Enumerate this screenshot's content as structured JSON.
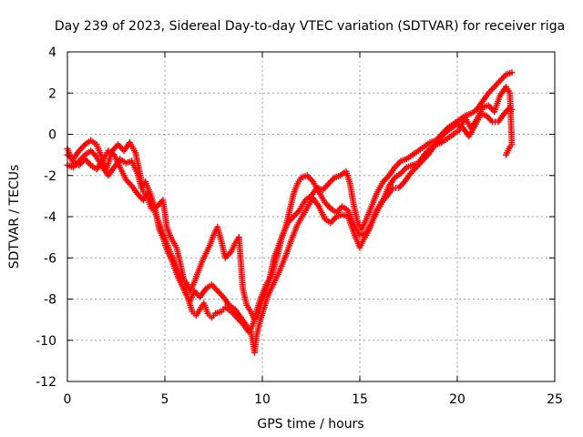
{
  "chart_data": {
    "type": "scatter",
    "title": "Day 239 of 2023, Sidereal Day-to-day VTEC variation (SDTVAR) for receiver riga",
    "xlabel": "GPS time / hours",
    "ylabel": "SDTVAR / TECUs",
    "xlim": [
      0,
      25
    ],
    "ylim": [
      -12,
      4
    ],
    "xticks": [
      0,
      5,
      10,
      15,
      20,
      25
    ],
    "yticks": [
      -12,
      -10,
      -8,
      -6,
      -4,
      -2,
      0,
      2,
      4
    ],
    "grid": true,
    "legend": "none",
    "marker": "plus",
    "color": "#ff0000",
    "series": [
      {
        "values": [
          [
            0.0,
            -1.0
          ],
          [
            0.3,
            -1.2
          ],
          [
            0.6,
            -0.8
          ],
          [
            0.9,
            -0.5
          ],
          [
            1.2,
            -0.3
          ],
          [
            1.5,
            -0.5
          ],
          [
            1.8,
            -1.2
          ],
          [
            2.0,
            -1.7
          ],
          [
            2.3,
            -0.8
          ],
          [
            2.6,
            -0.5
          ],
          [
            2.9,
            -0.8
          ],
          [
            3.2,
            -0.4
          ],
          [
            3.5,
            -0.9
          ],
          [
            3.7,
            -1.8
          ],
          [
            3.9,
            -2.8
          ],
          [
            4.1,
            -3.0
          ],
          [
            4.3,
            -3.6
          ],
          [
            4.6,
            -3.5
          ],
          [
            4.9,
            -3.2
          ],
          [
            5.1,
            -4.5
          ],
          [
            5.3,
            -5.0
          ],
          [
            5.6,
            -5.5
          ],
          [
            5.8,
            -6.3
          ],
          [
            6.0,
            -7.2
          ],
          [
            6.2,
            -8.0
          ],
          [
            6.4,
            -8.6
          ],
          [
            6.6,
            -8.8
          ],
          [
            6.8,
            -8.5
          ],
          [
            7.0,
            -8.2
          ],
          [
            7.2,
            -8.7
          ],
          [
            7.4,
            -8.9
          ],
          [
            7.6,
            -8.7
          ],
          [
            7.9,
            -8.6
          ],
          [
            8.1,
            -8.4
          ],
          [
            8.4,
            -8.6
          ],
          [
            8.7,
            -8.9
          ],
          [
            9.0,
            -9.2
          ],
          [
            9.3,
            -9.6
          ],
          [
            9.5,
            -9.3
          ],
          [
            9.7,
            -8.6
          ],
          [
            9.9,
            -8.0
          ],
          [
            10.2,
            -7.3
          ],
          [
            10.5,
            -6.8
          ],
          [
            10.8,
            -5.8
          ],
          [
            11.0,
            -5.0
          ],
          [
            11.3,
            -4.3
          ],
          [
            11.6,
            -4.0
          ],
          [
            11.9,
            -3.7
          ],
          [
            12.2,
            -3.2
          ],
          [
            12.5,
            -3.0
          ],
          [
            12.8,
            -2.6
          ],
          [
            13.1,
            -2.7
          ],
          [
            13.4,
            -2.4
          ],
          [
            13.7,
            -2.1
          ],
          [
            14.0,
            -2.0
          ],
          [
            14.3,
            -1.8
          ],
          [
            14.5,
            -2.4
          ],
          [
            14.7,
            -3.5
          ],
          [
            14.9,
            -4.3
          ],
          [
            15.1,
            -4.6
          ],
          [
            15.3,
            -4.2
          ],
          [
            15.6,
            -3.5
          ],
          [
            15.9,
            -2.8
          ],
          [
            16.2,
            -2.3
          ],
          [
            16.5,
            -2.0
          ],
          [
            16.8,
            -1.6
          ],
          [
            17.1,
            -1.3
          ],
          [
            17.4,
            -1.2
          ],
          [
            17.7,
            -1.0
          ],
          [
            18.0,
            -0.8
          ],
          [
            18.3,
            -0.6
          ],
          [
            18.6,
            -0.4
          ],
          [
            18.9,
            -0.3
          ],
          [
            19.2,
            0.0
          ],
          [
            19.5,
            0.3
          ],
          [
            19.8,
            0.5
          ],
          [
            20.1,
            0.7
          ],
          [
            20.4,
            0.9
          ],
          [
            20.7,
            1.0
          ],
          [
            21.0,
            1.2
          ],
          [
            21.3,
            1.6
          ],
          [
            21.6,
            2.0
          ],
          [
            21.9,
            2.3
          ],
          [
            22.2,
            2.6
          ],
          [
            22.5,
            2.9
          ],
          [
            22.8,
            3.0
          ]
        ]
      },
      {
        "values": [
          [
            0.0,
            -1.5
          ],
          [
            0.3,
            -1.6
          ],
          [
            0.6,
            -1.3
          ],
          [
            0.9,
            -1.0
          ],
          [
            1.2,
            -0.8
          ],
          [
            1.5,
            -1.1
          ],
          [
            1.8,
            -1.6
          ],
          [
            2.1,
            -2.0
          ],
          [
            2.4,
            -1.6
          ],
          [
            2.7,
            -1.2
          ],
          [
            3.0,
            -1.4
          ],
          [
            3.3,
            -1.3
          ],
          [
            3.6,
            -1.9
          ],
          [
            3.8,
            -2.6
          ],
          [
            4.0,
            -2.3
          ],
          [
            4.3,
            -3.0
          ],
          [
            4.5,
            -3.6
          ],
          [
            4.7,
            -4.6
          ],
          [
            4.9,
            -5.0
          ],
          [
            5.1,
            -5.6
          ],
          [
            5.3,
            -6.0
          ],
          [
            5.5,
            -6.5
          ],
          [
            5.7,
            -7.0
          ],
          [
            5.9,
            -7.4
          ],
          [
            6.1,
            -7.8
          ],
          [
            6.3,
            -8.1
          ],
          [
            6.5,
            -7.6
          ],
          [
            6.8,
            -7.9
          ],
          [
            7.1,
            -7.5
          ],
          [
            7.4,
            -7.3
          ],
          [
            7.7,
            -7.6
          ],
          [
            8.0,
            -7.9
          ],
          [
            8.3,
            -8.3
          ],
          [
            8.6,
            -8.5
          ],
          [
            8.9,
            -8.9
          ],
          [
            9.2,
            -9.3
          ],
          [
            9.4,
            -9.5
          ],
          [
            9.5,
            -10.0
          ],
          [
            9.6,
            -10.6
          ],
          [
            9.7,
            -9.8
          ],
          [
            9.9,
            -9.0
          ],
          [
            10.1,
            -8.4
          ],
          [
            10.3,
            -7.8
          ],
          [
            10.6,
            -7.2
          ],
          [
            10.9,
            -6.6
          ],
          [
            11.2,
            -5.9
          ],
          [
            11.5,
            -5.1
          ],
          [
            11.8,
            -4.4
          ],
          [
            12.1,
            -3.9
          ],
          [
            12.4,
            -3.4
          ],
          [
            12.6,
            -3.1
          ],
          [
            12.9,
            -3.5
          ],
          [
            13.2,
            -4.1
          ],
          [
            13.5,
            -4.3
          ],
          [
            13.8,
            -4.0
          ],
          [
            14.1,
            -3.9
          ],
          [
            14.4,
            -4.0
          ],
          [
            14.7,
            -4.8
          ],
          [
            15.0,
            -5.5
          ],
          [
            15.2,
            -5.1
          ],
          [
            15.5,
            -4.6
          ],
          [
            15.8,
            -3.8
          ],
          [
            16.1,
            -3.3
          ],
          [
            16.4,
            -3.0
          ],
          [
            16.7,
            -2.6
          ],
          [
            17.0,
            -2.6
          ],
          [
            17.3,
            -2.3
          ],
          [
            17.6,
            -1.9
          ],
          [
            17.9,
            -1.6
          ],
          [
            18.2,
            -1.3
          ],
          [
            18.5,
            -1.0
          ],
          [
            18.8,
            -0.6
          ],
          [
            19.1,
            -0.2
          ],
          [
            19.4,
            0.1
          ],
          [
            19.7,
            0.3
          ],
          [
            20.0,
            0.5
          ],
          [
            20.3,
            0.3
          ],
          [
            20.6,
            -0.1
          ],
          [
            20.9,
            0.4
          ],
          [
            21.2,
            1.0
          ],
          [
            21.5,
            0.9
          ],
          [
            21.8,
            0.6
          ],
          [
            22.1,
            0.6
          ],
          [
            22.4,
            1.0
          ],
          [
            22.7,
            1.3
          ],
          [
            22.8,
            1.2
          ]
        ]
      },
      {
        "values": [
          [
            0.0,
            -0.7
          ],
          [
            0.3,
            -1.4
          ],
          [
            0.6,
            -1.5
          ],
          [
            0.9,
            -1.2
          ],
          [
            1.2,
            -1.5
          ],
          [
            1.5,
            -1.7
          ],
          [
            1.8,
            -1.3
          ],
          [
            2.1,
            -0.8
          ],
          [
            2.4,
            -1.0
          ],
          [
            2.7,
            -1.6
          ],
          [
            3.0,
            -2.2
          ],
          [
            3.3,
            -2.5
          ],
          [
            3.6,
            -2.9
          ],
          [
            3.9,
            -3.2
          ],
          [
            4.1,
            -2.9
          ],
          [
            4.3,
            -3.3
          ],
          [
            4.5,
            -3.8
          ],
          [
            4.7,
            -4.3
          ],
          [
            4.9,
            -4.8
          ],
          [
            5.1,
            -5.3
          ],
          [
            5.3,
            -5.8
          ],
          [
            5.5,
            -6.2
          ],
          [
            5.7,
            -6.7
          ],
          [
            5.9,
            -7.0
          ],
          [
            6.1,
            -7.2
          ],
          [
            6.3,
            -7.6
          ],
          [
            6.5,
            -7.2
          ],
          [
            6.7,
            -6.7
          ],
          [
            6.9,
            -6.2
          ],
          [
            7.1,
            -5.8
          ],
          [
            7.3,
            -5.4
          ],
          [
            7.5,
            -4.9
          ],
          [
            7.7,
            -4.5
          ],
          [
            7.9,
            -5.2
          ],
          [
            8.1,
            -6.0
          ],
          [
            8.4,
            -5.7
          ],
          [
            8.6,
            -5.3
          ],
          [
            8.8,
            -5.0
          ],
          [
            9.0,
            -7.5
          ],
          [
            9.2,
            -8.3
          ],
          [
            9.4,
            -8.6
          ],
          [
            9.6,
            -9.0
          ],
          [
            9.8,
            -8.7
          ],
          [
            10.0,
            -8.0
          ],
          [
            10.2,
            -7.6
          ],
          [
            10.4,
            -6.9
          ],
          [
            10.6,
            -6.0
          ],
          [
            10.8,
            -5.5
          ],
          [
            11.0,
            -5.0
          ],
          [
            11.2,
            -4.5
          ],
          [
            11.4,
            -3.7
          ],
          [
            11.6,
            -2.9
          ],
          [
            11.8,
            -2.4
          ],
          [
            12.0,
            -2.1
          ],
          [
            12.3,
            -2.0
          ],
          [
            12.6,
            -2.3
          ],
          [
            12.9,
            -2.8
          ],
          [
            13.2,
            -3.3
          ],
          [
            13.5,
            -3.6
          ],
          [
            13.8,
            -3.8
          ],
          [
            14.1,
            -3.5
          ],
          [
            14.4,
            -3.7
          ],
          [
            14.7,
            -4.4
          ],
          [
            15.0,
            -4.9
          ],
          [
            15.3,
            -4.8
          ],
          [
            15.6,
            -4.3
          ],
          [
            15.9,
            -3.7
          ],
          [
            16.2,
            -3.2
          ],
          [
            16.5,
            -2.5
          ],
          [
            16.8,
            -2.1
          ],
          [
            17.1,
            -1.9
          ],
          [
            17.4,
            -1.6
          ],
          [
            17.7,
            -1.5
          ],
          [
            18.0,
            -1.4
          ],
          [
            18.3,
            -1.0
          ],
          [
            18.6,
            -0.7
          ],
          [
            18.9,
            -0.5
          ],
          [
            19.2,
            -0.4
          ],
          [
            19.5,
            -0.2
          ],
          [
            19.8,
            0.0
          ],
          [
            20.1,
            0.2
          ],
          [
            20.4,
            0.8
          ],
          [
            20.7,
            0.3
          ],
          [
            21.0,
            0.7
          ],
          [
            21.3,
            1.3
          ],
          [
            21.6,
            1.4
          ],
          [
            21.9,
            1.1
          ],
          [
            22.2,
            1.9
          ],
          [
            22.5,
            2.3
          ],
          [
            22.7,
            2.0
          ],
          [
            22.8,
            -0.5
          ],
          [
            22.7,
            -0.6
          ],
          [
            22.5,
            -1.0
          ]
        ]
      }
    ]
  }
}
